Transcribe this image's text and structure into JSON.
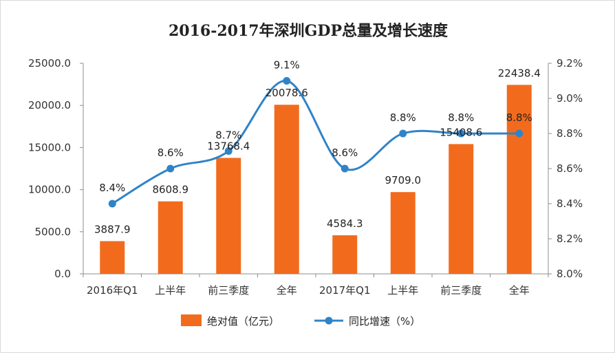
{
  "chart_data": {
    "type": "bar",
    "title": "2016-2017年深圳GDP总量及增长速度",
    "categories": [
      "2016年Q1",
      "上半年",
      "前三季度",
      "全年",
      "2017年Q1",
      "上半年",
      "前三季度",
      "全年"
    ],
    "series": [
      {
        "name": "绝对值（亿元）",
        "type": "bar",
        "axis": "left",
        "color": "#f26b1d",
        "values": [
          3887.9,
          8608.9,
          13768.4,
          20078.6,
          4584.3,
          9709.0,
          15408.6,
          22438.4
        ],
        "labels": [
          "3887.9",
          "8608.9",
          "13768.4",
          "20078.6",
          "4584.3",
          "9709.0",
          "15408.6",
          "22438.4"
        ]
      },
      {
        "name": "同比增速（%）",
        "type": "line",
        "axis": "right",
        "color": "#2f83c8",
        "smooth": true,
        "values": [
          8.4,
          8.6,
          8.7,
          9.1,
          8.6,
          8.8,
          8.8,
          8.8
        ],
        "labels": [
          "8.4%",
          "8.6%",
          "8.7%",
          "9.1%",
          "8.6%",
          "8.8%",
          "8.8%",
          "8.8%"
        ]
      }
    ],
    "y_left": {
      "range": [
        0,
        25000
      ],
      "ticks": [
        "0.0",
        "5000.0",
        "10000.0",
        "15000.0",
        "20000.0",
        "25000.0"
      ]
    },
    "y_right": {
      "range": [
        8.0,
        9.2
      ],
      "ticks": [
        "8.0%",
        "8.2%",
        "8.4%",
        "8.6%",
        "8.8%",
        "9.0%",
        "9.2%"
      ]
    },
    "grid": false,
    "legend": "bottom"
  }
}
